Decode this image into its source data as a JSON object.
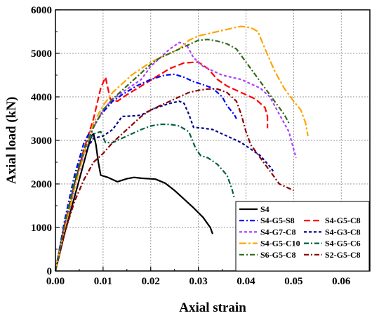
{
  "chart_data": {
    "type": "line",
    "xlabel": "Axial strain",
    "ylabel": "Axial load (kN)",
    "xlim": [
      0,
      0.066
    ],
    "ylim": [
      0,
      6000
    ],
    "xticks": [
      "0.00",
      "0.01",
      "0.02",
      "0.03",
      "0.04",
      "0.05",
      "0.06"
    ],
    "yticks": [
      "0",
      "1000",
      "2000",
      "3000",
      "4000",
      "5000",
      "6000"
    ],
    "grid": true,
    "legend_position": "bottom-right",
    "series": [
      {
        "name": "S4",
        "color": "#000000",
        "dash": "solid",
        "points": [
          [
            0,
            0
          ],
          [
            0.002,
            900
          ],
          [
            0.004,
            1700
          ],
          [
            0.006,
            2500
          ],
          [
            0.0075,
            3100
          ],
          [
            0.008,
            3150
          ],
          [
            0.0085,
            2900
          ],
          [
            0.009,
            2500
          ],
          [
            0.0095,
            2200
          ],
          [
            0.011,
            2150
          ],
          [
            0.013,
            2050
          ],
          [
            0.015,
            2120
          ],
          [
            0.0165,
            2150
          ],
          [
            0.018,
            2130
          ],
          [
            0.021,
            2110
          ],
          [
            0.023,
            2020
          ],
          [
            0.025,
            1850
          ],
          [
            0.027,
            1650
          ],
          [
            0.029,
            1450
          ],
          [
            0.031,
            1230
          ],
          [
            0.0325,
            1000
          ],
          [
            0.033,
            850
          ]
        ]
      },
      {
        "name": "S4-G5-C8",
        "color": "#ff0000",
        "dash": "longdash",
        "points": [
          [
            0,
            0
          ],
          [
            0.002,
            1100
          ],
          [
            0.004,
            2000
          ],
          [
            0.006,
            2800
          ],
          [
            0.008,
            3500
          ],
          [
            0.0095,
            4200
          ],
          [
            0.0105,
            4450
          ],
          [
            0.011,
            4200
          ],
          [
            0.0115,
            3950
          ],
          [
            0.013,
            3900
          ],
          [
            0.015,
            4050
          ],
          [
            0.018,
            4250
          ],
          [
            0.021,
            4450
          ],
          [
            0.024,
            4650
          ],
          [
            0.027,
            4780
          ],
          [
            0.03,
            4800
          ],
          [
            0.032,
            4650
          ],
          [
            0.034,
            4400
          ],
          [
            0.036,
            4250
          ],
          [
            0.038,
            4150
          ],
          [
            0.04,
            4050
          ],
          [
            0.042,
            3950
          ],
          [
            0.044,
            3750
          ],
          [
            0.0445,
            3550
          ],
          [
            0.0445,
            3280
          ]
        ]
      },
      {
        "name": "S4-G5-S8",
        "color": "#0000ff",
        "dash": "dashdot",
        "points": [
          [
            0,
            0
          ],
          [
            0.002,
            1200
          ],
          [
            0.004,
            2200
          ],
          [
            0.006,
            2950
          ],
          [
            0.008,
            3350
          ],
          [
            0.01,
            3650
          ],
          [
            0.012,
            3900
          ],
          [
            0.014,
            4050
          ],
          [
            0.017,
            4250
          ],
          [
            0.02,
            4400
          ],
          [
            0.023,
            4500
          ],
          [
            0.025,
            4520
          ],
          [
            0.027,
            4450
          ],
          [
            0.029,
            4350
          ],
          [
            0.031,
            4280
          ],
          [
            0.033,
            4200
          ],
          [
            0.035,
            4000
          ],
          [
            0.036,
            3800
          ],
          [
            0.0375,
            3600
          ],
          [
            0.038,
            3500
          ]
        ]
      },
      {
        "name": "S4-G3-C8",
        "color": "#00008b",
        "dash": "shortdash",
        "points": [
          [
            0,
            0
          ],
          [
            0.002,
            1100
          ],
          [
            0.004,
            2000
          ],
          [
            0.006,
            2700
          ],
          [
            0.008,
            3050
          ],
          [
            0.01,
            3100
          ],
          [
            0.012,
            3250
          ],
          [
            0.014,
            3550
          ],
          [
            0.016,
            3560
          ],
          [
            0.018,
            3580
          ],
          [
            0.02,
            3700
          ],
          [
            0.022,
            3780
          ],
          [
            0.024,
            3850
          ],
          [
            0.026,
            3900
          ],
          [
            0.027,
            3850
          ],
          [
            0.028,
            3600
          ],
          [
            0.029,
            3300
          ],
          [
            0.031,
            3280
          ],
          [
            0.033,
            3250
          ],
          [
            0.035,
            3150
          ],
          [
            0.037,
            3050
          ],
          [
            0.039,
            2950
          ],
          [
            0.041,
            2800
          ],
          [
            0.043,
            2650
          ],
          [
            0.045,
            2400
          ],
          [
            0.046,
            2250
          ]
        ]
      },
      {
        "name": "S4-G7-C8",
        "color": "#b040ff",
        "dash": "shortdash",
        "points": [
          [
            0,
            0
          ],
          [
            0.002,
            1000
          ],
          [
            0.004,
            1900
          ],
          [
            0.006,
            2700
          ],
          [
            0.008,
            3300
          ],
          [
            0.01,
            3700
          ],
          [
            0.012,
            3950
          ],
          [
            0.014,
            4100
          ],
          [
            0.016,
            4250
          ],
          [
            0.018,
            4400
          ],
          [
            0.02,
            4700
          ],
          [
            0.022,
            4900
          ],
          [
            0.024,
            5100
          ],
          [
            0.026,
            5250
          ],
          [
            0.0275,
            5200
          ],
          [
            0.029,
            4900
          ],
          [
            0.031,
            4700
          ],
          [
            0.033,
            4600
          ],
          [
            0.035,
            4500
          ],
          [
            0.037,
            4450
          ],
          [
            0.039,
            4400
          ],
          [
            0.041,
            4300
          ],
          [
            0.043,
            4200
          ],
          [
            0.045,
            4000
          ],
          [
            0.047,
            3600
          ],
          [
            0.049,
            3200
          ],
          [
            0.0505,
            2600
          ]
        ]
      },
      {
        "name": "S4-G5-C6",
        "color": "#006040",
        "dash": "dashdot",
        "points": [
          [
            0,
            0
          ],
          [
            0.002,
            1100
          ],
          [
            0.004,
            2100
          ],
          [
            0.006,
            2800
          ],
          [
            0.008,
            3150
          ],
          [
            0.0095,
            3200
          ],
          [
            0.0105,
            2950
          ],
          [
            0.012,
            2950
          ],
          [
            0.014,
            3050
          ],
          [
            0.016,
            3150
          ],
          [
            0.018,
            3250
          ],
          [
            0.02,
            3330
          ],
          [
            0.022,
            3370
          ],
          [
            0.024,
            3370
          ],
          [
            0.026,
            3330
          ],
          [
            0.028,
            3200
          ],
          [
            0.0295,
            2800
          ],
          [
            0.0305,
            2650
          ],
          [
            0.032,
            2600
          ],
          [
            0.034,
            2450
          ],
          [
            0.036,
            2200
          ],
          [
            0.037,
            1900
          ],
          [
            0.0375,
            1700
          ]
        ]
      },
      {
        "name": "S4-G5-C10",
        "color": "#ffa500",
        "dash": "longdashdot",
        "points": [
          [
            0,
            0
          ],
          [
            0.002,
            1000
          ],
          [
            0.004,
            1900
          ],
          [
            0.006,
            2700
          ],
          [
            0.008,
            3400
          ],
          [
            0.01,
            3800
          ],
          [
            0.012,
            4100
          ],
          [
            0.014,
            4300
          ],
          [
            0.016,
            4500
          ],
          [
            0.018,
            4650
          ],
          [
            0.02,
            4800
          ],
          [
            0.022,
            4900
          ],
          [
            0.024,
            5000
          ],
          [
            0.026,
            5100
          ],
          [
            0.028,
            5300
          ],
          [
            0.03,
            5400
          ],
          [
            0.032,
            5450
          ],
          [
            0.034,
            5500
          ],
          [
            0.036,
            5550
          ],
          [
            0.038,
            5600
          ],
          [
            0.039,
            5620
          ],
          [
            0.041,
            5590
          ],
          [
            0.0425,
            5500
          ],
          [
            0.044,
            5100
          ],
          [
            0.046,
            4600
          ],
          [
            0.048,
            4200
          ],
          [
            0.05,
            3900
          ],
          [
            0.0515,
            3700
          ],
          [
            0.0525,
            3400
          ],
          [
            0.053,
            3100
          ]
        ]
      },
      {
        "name": "S2-G5-C8",
        "color": "#8b0000",
        "dash": "dashdot",
        "points": [
          [
            0,
            0
          ],
          [
            0.002,
            900
          ],
          [
            0.004,
            1600
          ],
          [
            0.006,
            2100
          ],
          [
            0.008,
            2500
          ],
          [
            0.01,
            2700
          ],
          [
            0.012,
            2950
          ],
          [
            0.014,
            3150
          ],
          [
            0.016,
            3350
          ],
          [
            0.018,
            3550
          ],
          [
            0.02,
            3700
          ],
          [
            0.022,
            3800
          ],
          [
            0.024,
            3900
          ],
          [
            0.026,
            4000
          ],
          [
            0.028,
            4100
          ],
          [
            0.03,
            4150
          ],
          [
            0.032,
            4180
          ],
          [
            0.034,
            4180
          ],
          [
            0.036,
            4100
          ],
          [
            0.038,
            3900
          ],
          [
            0.039,
            3600
          ],
          [
            0.04,
            3200
          ],
          [
            0.041,
            2900
          ],
          [
            0.043,
            2600
          ],
          [
            0.045,
            2300
          ],
          [
            0.047,
            2000
          ],
          [
            0.049,
            1900
          ],
          [
            0.05,
            1850
          ]
        ]
      },
      {
        "name": "S6-G5-C8",
        "color": "#2e6b1f",
        "dash": "dashdot",
        "points": [
          [
            0,
            0
          ],
          [
            0.002,
            1100
          ],
          [
            0.004,
            2000
          ],
          [
            0.006,
            2800
          ],
          [
            0.008,
            3300
          ],
          [
            0.01,
            3700
          ],
          [
            0.012,
            3950
          ],
          [
            0.014,
            4150
          ],
          [
            0.016,
            4350
          ],
          [
            0.018,
            4550
          ],
          [
            0.02,
            4750
          ],
          [
            0.022,
            4900
          ],
          [
            0.024,
            5000
          ],
          [
            0.026,
            5100
          ],
          [
            0.028,
            5200
          ],
          [
            0.03,
            5300
          ],
          [
            0.032,
            5320
          ],
          [
            0.034,
            5280
          ],
          [
            0.036,
            5220
          ],
          [
            0.038,
            5100
          ],
          [
            0.04,
            4800
          ],
          [
            0.042,
            4500
          ],
          [
            0.044,
            4200
          ],
          [
            0.046,
            3900
          ],
          [
            0.048,
            3600
          ],
          [
            0.049,
            3400
          ]
        ]
      }
    ]
  }
}
